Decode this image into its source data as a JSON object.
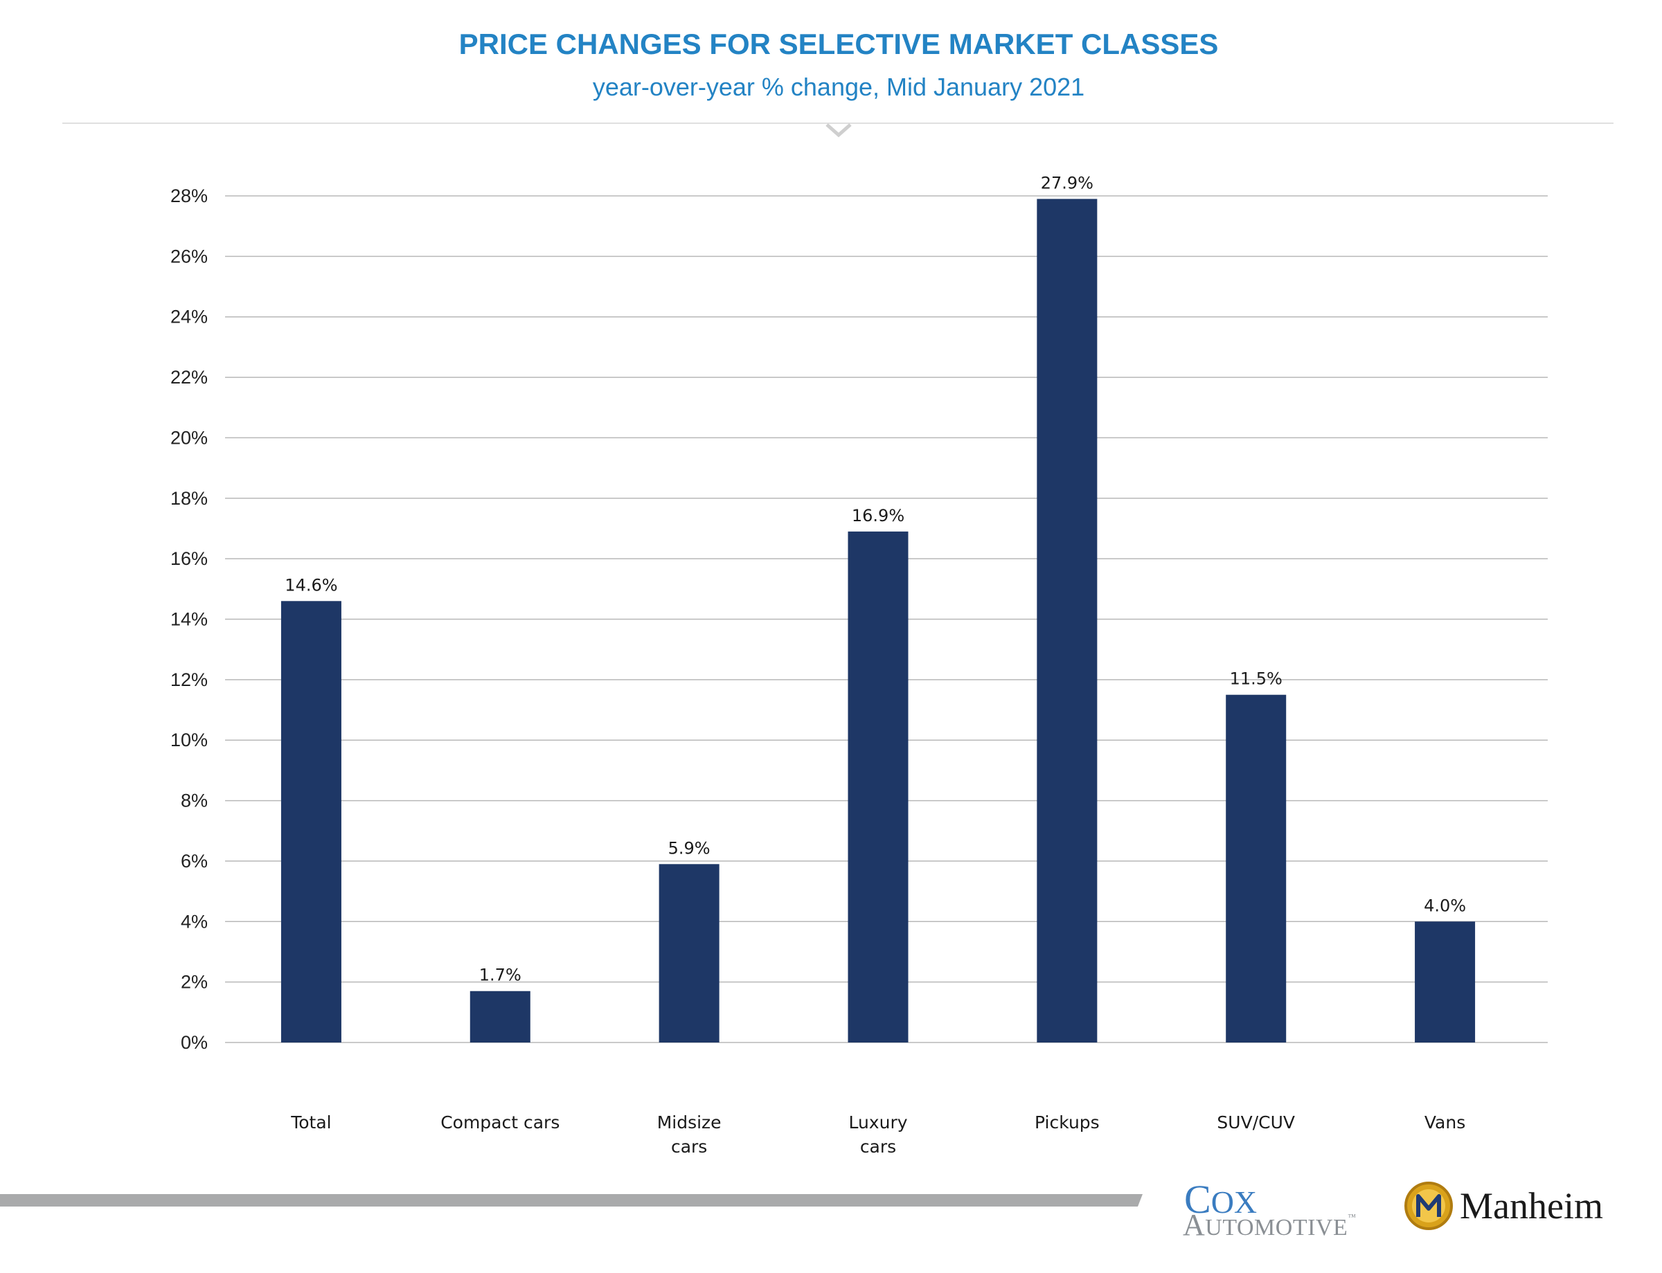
{
  "chart_data": {
    "type": "bar",
    "title": "PRICE CHANGES FOR SELECTIVE MARKET CLASSES",
    "subtitle": "year-over-year % change, Mid January 2021",
    "categories": [
      [
        "Total"
      ],
      [
        "Compact cars"
      ],
      [
        "Midsize",
        "cars"
      ],
      [
        "Luxury",
        "cars"
      ],
      [
        "Pickups"
      ],
      [
        "SUV/CUV"
      ],
      [
        "Vans"
      ]
    ],
    "values": [
      14.6,
      1.7,
      5.9,
      16.9,
      27.9,
      11.5,
      4.0
    ],
    "data_labels": [
      "14.6%",
      "1.7%",
      "5.9%",
      "16.9%",
      "27.9%",
      "11.5%",
      "4.0%"
    ],
    "ylim": [
      0,
      28
    ],
    "yticks": [
      0,
      2,
      4,
      6,
      8,
      10,
      12,
      14,
      16,
      18,
      20,
      22,
      24,
      26,
      28
    ],
    "ytick_suffix": "%",
    "grid": true,
    "bar_color": "#1e3766",
    "grid_color": "#b8b8b8",
    "title_color": "#2383c4"
  },
  "branding": {
    "cox_line1": "Cox",
    "cox_line2": "Automotive",
    "cox_tm": "™",
    "manheim": "Manheim"
  }
}
